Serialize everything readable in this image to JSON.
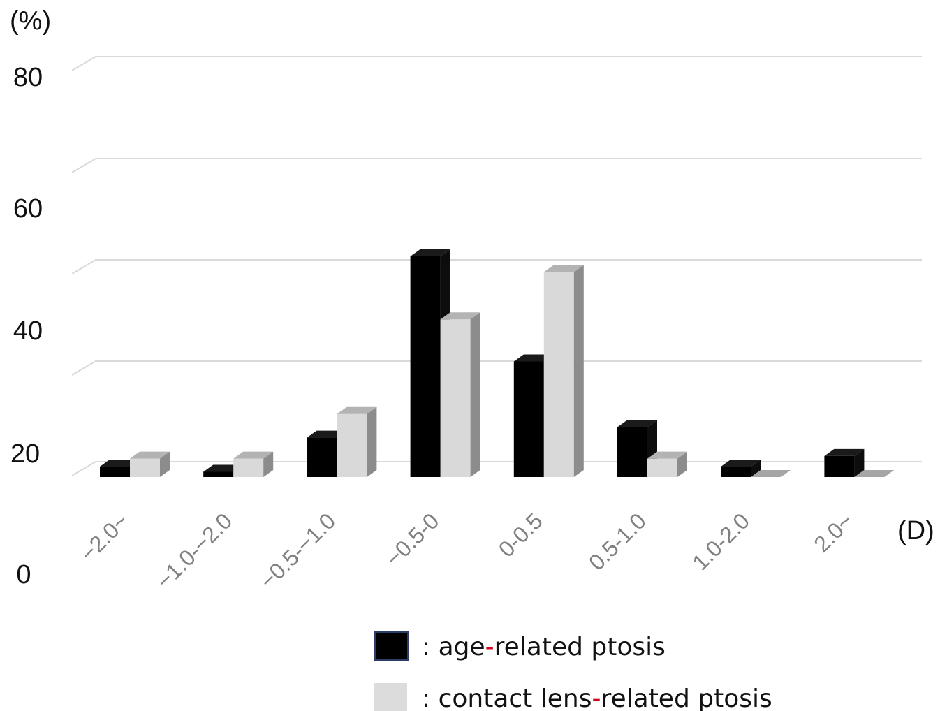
{
  "chart_data": {
    "type": "bar",
    "style": "3d-clustered-column",
    "y_unit": "(%)",
    "x_unit": "(D)",
    "yticks": [
      "0",
      "20",
      "40",
      "60",
      "80"
    ],
    "ylim": [
      0,
      80
    ],
    "grid": true,
    "categories": [
      "−2.0~",
      "−1.0-−2.0",
      "−0.5-−1.0",
      "−0.5-0",
      "0-0.5",
      "0.5-1.0",
      "1.0-2.0",
      "2.0~"
    ],
    "series": [
      {
        "name": "age-related ptosis",
        "color": "#000000",
        "values": [
          2,
          1,
          7.5,
          42,
          22,
          9.5,
          2,
          4
        ]
      },
      {
        "name": "contact lens-related ptosis",
        "color": "#d9d9d9",
        "values": [
          3.5,
          3.5,
          12,
          30,
          39,
          3.5,
          0,
          0
        ]
      }
    ],
    "legend": {
      "position": "bottom",
      "items": [
        {
          "prefix": ": age",
          "hyphen": "-",
          "suffix": "related ptosis",
          "color": "#000000"
        },
        {
          "prefix": ": contact lens",
          "hyphen": "-",
          "suffix": "related ptosis",
          "color": "#d9d9d9"
        }
      ]
    }
  }
}
